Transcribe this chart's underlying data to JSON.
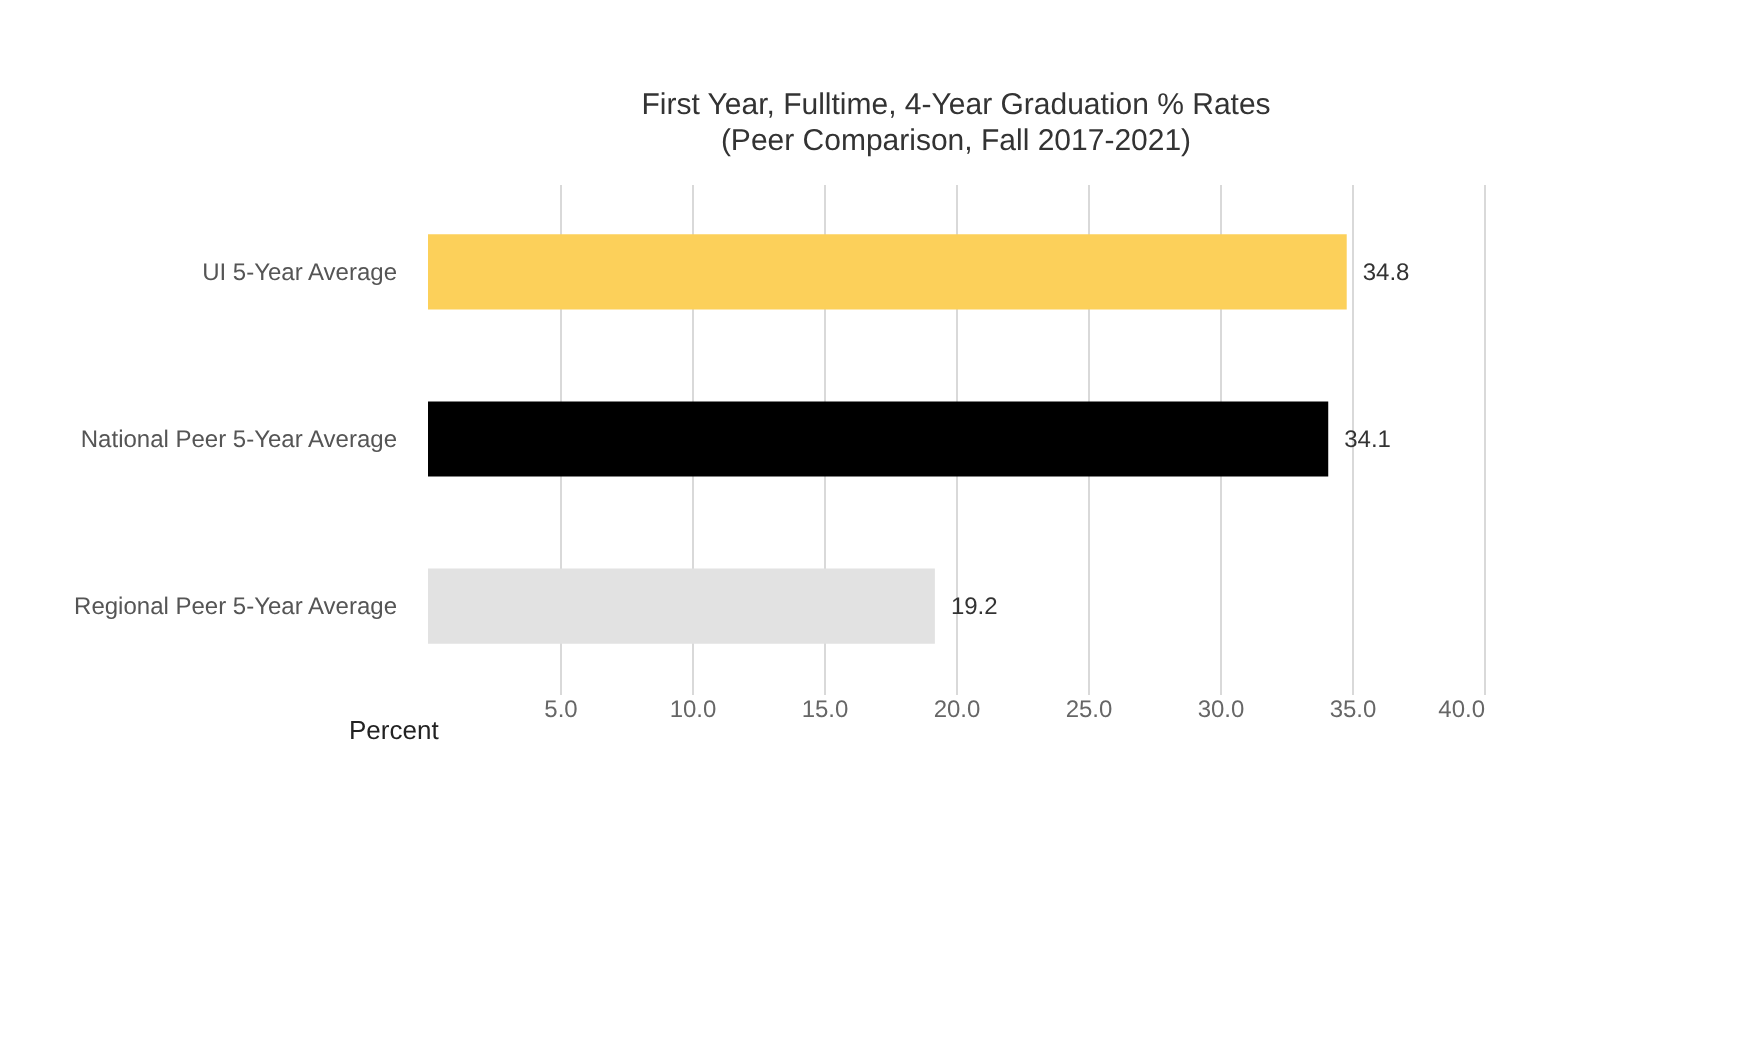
{
  "chart_data": {
    "type": "bar",
    "orientation": "horizontal",
    "title": "First Year, Fulltime, 4-Year Graduation % Rates",
    "subtitle": "(Peer Comparison, Fall 2017-2021)",
    "xlabel": "Percent",
    "categories": [
      "UI 5-Year Average",
      "National Peer 5-Year Average",
      "Regional Peer 5-Year Average"
    ],
    "values": [
      34.8,
      34.1,
      19.2
    ],
    "colors": [
      "#fcd05a",
      "#000000",
      "#e2e2e2"
    ],
    "xlim": [
      0,
      40
    ],
    "xticks": [
      {
        "value": 5,
        "label": "5.0"
      },
      {
        "value": 10,
        "label": "10.0"
      },
      {
        "value": 15,
        "label": "15.0"
      },
      {
        "value": 20,
        "label": "20.0"
      },
      {
        "value": 25,
        "label": "25.0"
      },
      {
        "value": 30,
        "label": "30.0"
      },
      {
        "value": 35,
        "label": "35.0"
      },
      {
        "value": 40,
        "label": "40.0"
      }
    ],
    "grid": "x",
    "data_labels": true
  }
}
